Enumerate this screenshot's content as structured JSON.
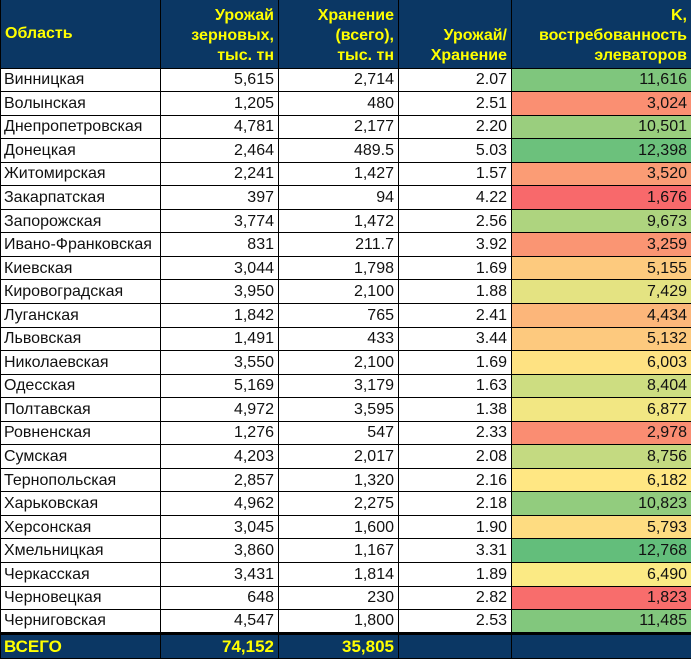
{
  "headers": [
    "Область",
    "Урожай зерновых, тыс. тн",
    "Хранение (всего), тыс. тн",
    "Урожай/ Хранение",
    "K, востребованность элеваторов"
  ],
  "rows": [
    [
      "Винницкая",
      "5,615",
      "2,714",
      "2.07",
      "11,616"
    ],
    [
      "Волынская",
      "1,205",
      "480",
      "2.51",
      "3,024"
    ],
    [
      "Днепропетровская",
      "4,781",
      "2,177",
      "2.20",
      "10,501"
    ],
    [
      "Донецкая",
      "2,464",
      "489.5",
      "5.03",
      "12,398"
    ],
    [
      "Житомирская",
      "2,241",
      "1,427",
      "1.57",
      "3,520"
    ],
    [
      "Закарпатская",
      "397",
      "94",
      "4.22",
      "1,676"
    ],
    [
      "Запорожская",
      "3,774",
      "1,472",
      "2.56",
      "9,673"
    ],
    [
      "Ивано-Франковская",
      "831",
      "211.7",
      "3.92",
      "3,259"
    ],
    [
      "Киевская",
      "3,044",
      "1,798",
      "1.69",
      "5,155"
    ],
    [
      "Кировоградская",
      "3,950",
      "2,100",
      "1.88",
      "7,429"
    ],
    [
      "Луганская",
      "1,842",
      "765",
      "2.41",
      "4,434"
    ],
    [
      "Львовская",
      "1,491",
      "433",
      "3.44",
      "5,132"
    ],
    [
      "Николаевская",
      "3,550",
      "2,100",
      "1.69",
      "6,003"
    ],
    [
      "Одесская",
      "5,169",
      "3,179",
      "1.63",
      "8,404"
    ],
    [
      "Полтавская",
      "4,972",
      "3,595",
      "1.38",
      "6,877"
    ],
    [
      "Ровненская",
      "1,276",
      "547",
      "2.33",
      "2,978"
    ],
    [
      "Сумская",
      "4,203",
      "2,017",
      "2.08",
      "8,756"
    ],
    [
      "Тернопольская",
      "2,857",
      "1,320",
      "2.16",
      "6,182"
    ],
    [
      "Харьковская",
      "4,962",
      "2,275",
      "2.18",
      "10,823"
    ],
    [
      "Херсонская",
      "3,045",
      "1,600",
      "1.90",
      "5,793"
    ],
    [
      "Хмельницкая",
      "3,860",
      "1,167",
      "3.31",
      "12,768"
    ],
    [
      "Черкасская",
      "3,431",
      "1,814",
      "1.89",
      "6,490"
    ],
    [
      "Черновецкая",
      "648",
      "230",
      "2.82",
      "1,823"
    ],
    [
      "Черниговская",
      "4,547",
      "1,800",
      "2.53",
      "11,485"
    ]
  ],
  "total": [
    "ВСЕГО",
    "74,152",
    "35,805",
    "",
    ""
  ],
  "color_scale": {
    "min": "#F8696B",
    "mid": "#FFEB84",
    "max": "#63BE7B"
  },
  "colors": {
    "header_bg": "#0B3764",
    "header_text": "#FFFF00"
  }
}
